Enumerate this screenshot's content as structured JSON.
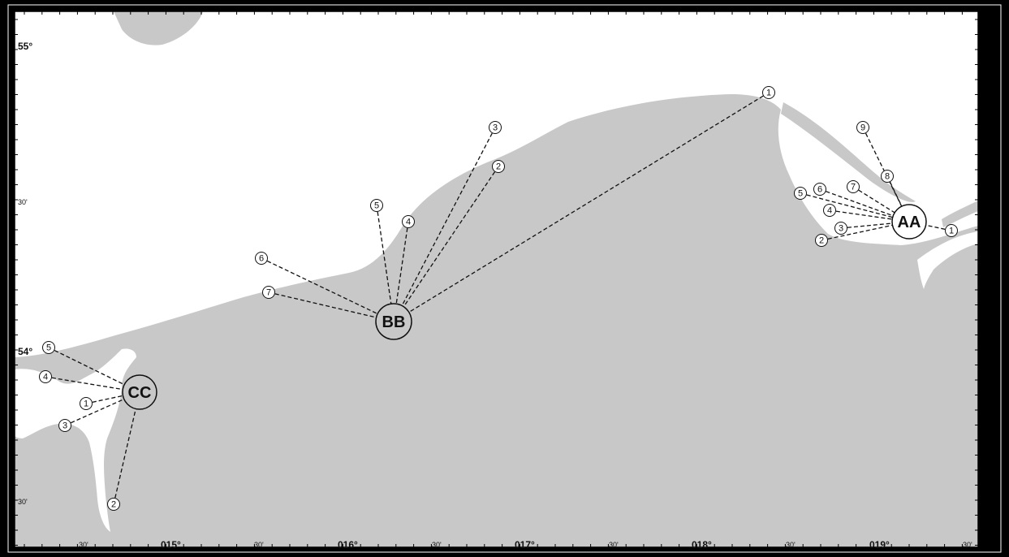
{
  "map": {
    "colors": {
      "land": "#c8c8c8",
      "water": "#ffffff",
      "frame": "#000000",
      "ink": "#111111"
    },
    "lat_labels": [
      {
        "text": "55°",
        "major": true
      },
      {
        "text": "30'",
        "major": false
      },
      {
        "text": "54°",
        "major": true
      },
      {
        "text": "30'",
        "major": false
      }
    ],
    "lon_labels": [
      {
        "text": "30'",
        "major": false
      },
      {
        "text": "015°",
        "major": true
      },
      {
        "text": "30'",
        "major": false
      },
      {
        "text": "016°",
        "major": true
      },
      {
        "text": "30'",
        "major": false
      },
      {
        "text": "017°",
        "major": true
      },
      {
        "text": "30'",
        "major": false
      },
      {
        "text": "018°",
        "major": true
      },
      {
        "text": "30'",
        "major": false
      },
      {
        "text": "019°",
        "major": true
      },
      {
        "text": "30'",
        "major": false
      }
    ],
    "hubs": [
      {
        "label": "AA",
        "fill": "#ffffff",
        "points": [
          "1",
          "2",
          "3",
          "4",
          "5",
          "6",
          "7",
          "8",
          "9"
        ]
      },
      {
        "label": "BB",
        "fill": "#c8c8c8",
        "points": [
          "1",
          "2",
          "3",
          "4",
          "5",
          "6",
          "7"
        ]
      },
      {
        "label": "CC",
        "fill": "#c8c8c8",
        "points": [
          "1",
          "2",
          "3",
          "4",
          "5"
        ]
      }
    ]
  }
}
